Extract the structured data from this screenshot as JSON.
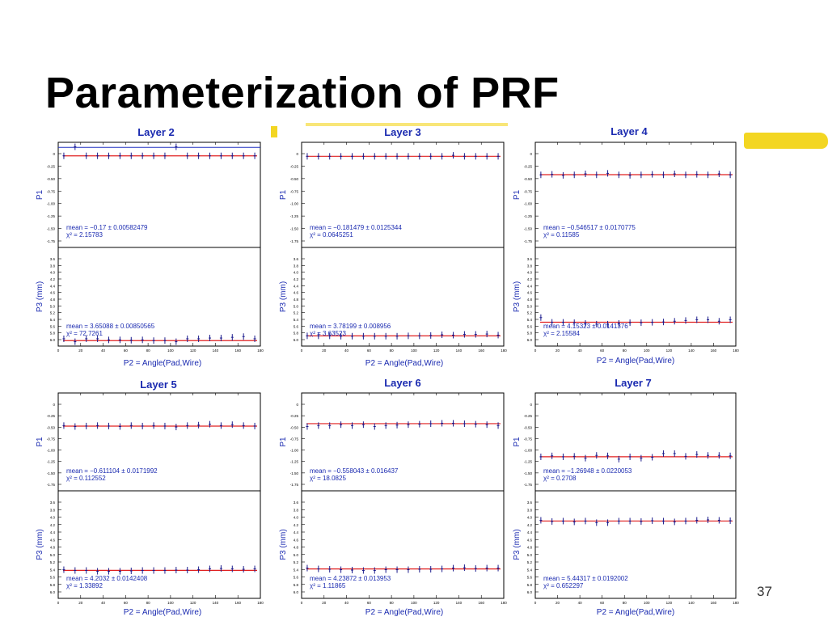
{
  "slide": {
    "title": "Parameterization of PRF",
    "page_number": "37"
  },
  "colors": {
    "points": "#1a1a8c",
    "fit": "#e02020",
    "axis_label": "#1a2ab0",
    "stats_text": "#1a2ab0",
    "highlight": "#f2d20a"
  },
  "chart_data": [
    {
      "type": "scatter",
      "title": "Layer 2",
      "xlabel": "P2 = Angle(Pad,Wire)",
      "xlim": [
        0,
        180
      ],
      "x": [
        5,
        15,
        25,
        35,
        45,
        55,
        65,
        75,
        85,
        95,
        105,
        115,
        125,
        135,
        145,
        155,
        165,
        175
      ],
      "top": {
        "ylabel": "P1",
        "ylim": [
          -2.0,
          0.1
        ],
        "yticks": [
          "0",
          "-0.25",
          "-0.50",
          "-0.75",
          "-1.00",
          "-1.25",
          "-1.50",
          "-1.75"
        ],
        "values": [
          -0.17,
          0.01,
          -0.17,
          -0.17,
          -0.17,
          -0.17,
          -0.17,
          -0.17,
          -0.17,
          -0.17,
          0.01,
          -0.17,
          -0.17,
          -0.17,
          -0.17,
          -0.17,
          -0.17,
          -0.17
        ],
        "fit": -0.17,
        "ref_line": 0,
        "stats": [
          "mean = −0.17 ± 0.00582479",
          "χ² = 2.15783"
        ]
      },
      "bottom": {
        "ylabel": "P3 (mm)",
        "ylim": [
          3.5,
          6.2
        ],
        "yticks": [
          "3.6",
          "3.8",
          "4.0",
          "4.2",
          "4.4",
          "4.6",
          "4.8",
          "5.0",
          "5.2",
          "5.4",
          "5.6",
          "5.8",
          "6.0"
        ],
        "values": [
          3.7,
          3.62,
          3.7,
          3.7,
          3.67,
          3.67,
          3.66,
          3.67,
          3.65,
          3.65,
          3.62,
          3.7,
          3.7,
          3.72,
          3.72,
          3.74,
          3.76,
          3.7
        ],
        "fit": 3.65,
        "stats": [
          "mean = 3.65088 ± 0.00850565",
          "χ² = 72.7261"
        ]
      }
    },
    {
      "type": "scatter",
      "title": "Layer 3",
      "xlabel": "P2 = Angle(Pad,Wire)",
      "xlim": [
        0,
        180
      ],
      "x": [
        5,
        15,
        25,
        35,
        45,
        55,
        65,
        75,
        85,
        95,
        105,
        115,
        125,
        135,
        145,
        155,
        165,
        175
      ],
      "top": {
        "ylabel": "P1",
        "ylim": [
          -2.0,
          0.1
        ],
        "yticks": [
          "0",
          "-0.25",
          "-0.50",
          "-0.75",
          "-1.00",
          "-1.25",
          "-1.50",
          "-1.75"
        ],
        "values": [
          -0.18,
          -0.18,
          -0.18,
          -0.18,
          -0.18,
          -0.18,
          -0.18,
          -0.18,
          -0.18,
          -0.18,
          -0.18,
          -0.18,
          -0.18,
          -0.16,
          -0.18,
          -0.18,
          -0.18,
          -0.18
        ],
        "fit": -0.18,
        "stats": [
          "mean = −0.181479 ± 0.0125344",
          "χ² = 0.0645251"
        ]
      },
      "bottom": {
        "ylabel": "P3 (mm)",
        "ylim": [
          3.5,
          6.2
        ],
        "yticks": [
          "3.6",
          "3.8",
          "4.0",
          "4.2",
          "4.4",
          "4.6",
          "4.8",
          "5.0",
          "5.2",
          "5.4",
          "5.6",
          "5.8",
          "6.0"
        ],
        "values": [
          3.78,
          3.78,
          3.78,
          3.77,
          3.77,
          3.77,
          3.77,
          3.77,
          3.77,
          3.78,
          3.78,
          3.79,
          3.81,
          3.8,
          3.82,
          3.82,
          3.83,
          3.8
        ],
        "fit": 3.78,
        "stats": [
          "mean = 3.78199 ± 0.008956",
          "χ² = 3.63523"
        ]
      }
    },
    {
      "type": "scatter",
      "title": "Layer 4",
      "xlabel": "P2 = Angle(Pad,Wire)",
      "xlim": [
        0,
        180
      ],
      "x": [
        5,
        15,
        25,
        35,
        45,
        55,
        65,
        75,
        85,
        95,
        105,
        115,
        125,
        135,
        145,
        155,
        165,
        175
      ],
      "top": {
        "ylabel": "P1",
        "ylim": [
          -2.0,
          0.1
        ],
        "yticks": [
          "0",
          "-0.25",
          "-0.50",
          "-0.75",
          "-1.00",
          "-1.25",
          "-1.50",
          "-1.75"
        ],
        "values": [
          -0.55,
          -0.54,
          -0.56,
          -0.55,
          -0.53,
          -0.55,
          -0.52,
          -0.55,
          -0.56,
          -0.55,
          -0.54,
          -0.55,
          -0.53,
          -0.55,
          -0.54,
          -0.55,
          -0.53,
          -0.55
        ],
        "fit": -0.546,
        "stats": [
          "mean = −0.546517 ± 0.0170775",
          "χ² = 0.11585"
        ]
      },
      "bottom": {
        "ylabel": "P3 (mm)",
        "ylim": [
          3.5,
          6.2
        ],
        "yticks": [
          "3.6",
          "3.8",
          "4.0",
          "4.2",
          "4.4",
          "4.6",
          "4.8",
          "5.0",
          "5.2",
          "5.4",
          "5.6",
          "5.8",
          "6.0"
        ],
        "values": [
          4.28,
          4.15,
          4.15,
          4.14,
          4.12,
          4.1,
          4.1,
          4.12,
          4.14,
          4.14,
          4.15,
          4.16,
          4.18,
          4.2,
          4.22,
          4.22,
          4.18,
          4.22
        ],
        "fit": 4.153,
        "stats": [
          "mean = 4.15323 ± 0.0141376",
          "χ² = 2.15584"
        ]
      }
    },
    {
      "type": "scatter",
      "title": "Layer 5",
      "xlabel": "P2 = Angle(Pad,Wire)",
      "xlim": [
        0,
        180
      ],
      "x": [
        5,
        15,
        25,
        35,
        45,
        55,
        65,
        75,
        85,
        95,
        105,
        115,
        125,
        135,
        145,
        155,
        165,
        175
      ],
      "top": {
        "ylabel": "P1",
        "ylim": [
          -2.0,
          0.1
        ],
        "yticks": [
          "0",
          "-0.25",
          "-0.50",
          "-0.75",
          "-1.00",
          "-1.25",
          "-1.50",
          "-1.75"
        ],
        "values": [
          -0.6,
          -0.62,
          -0.61,
          -0.6,
          -0.61,
          -0.62,
          -0.6,
          -0.61,
          -0.6,
          -0.61,
          -0.63,
          -0.6,
          -0.59,
          -0.57,
          -0.6,
          -0.58,
          -0.6,
          -0.61
        ],
        "fit": -0.611,
        "stats": [
          "mean = −0.611104 ± 0.0171992",
          "χ² = 0.112552"
        ]
      },
      "bottom": {
        "ylabel": "P3 (mm)",
        "ylim": [
          3.5,
          6.2
        ],
        "yticks": [
          "3.6",
          "3.8",
          "4.0",
          "4.2",
          "4.4",
          "4.6",
          "4.8",
          "5.0",
          "5.2",
          "5.4",
          "5.6",
          "5.8",
          "6.0"
        ],
        "values": [
          4.22,
          4.2,
          4.2,
          4.18,
          4.18,
          4.18,
          4.19,
          4.2,
          4.2,
          4.2,
          4.21,
          4.21,
          4.22,
          4.24,
          4.25,
          4.24,
          4.23,
          4.24
        ],
        "fit": 4.203,
        "stats": [
          "mean = 4.2032 ± 0.0142408",
          "χ² = 1.33892"
        ]
      }
    },
    {
      "type": "scatter",
      "title": "Layer 6",
      "xlabel": "P2 = Angle(Pad,Wire)",
      "xlim": [
        0,
        180
      ],
      "x": [
        5,
        15,
        25,
        35,
        45,
        55,
        65,
        75,
        85,
        95,
        105,
        115,
        125,
        135,
        145,
        155,
        165,
        175
      ],
      "top": {
        "ylabel": "P1",
        "ylim": [
          -2.0,
          0.1
        ],
        "yticks": [
          "0",
          "-0.25",
          "-0.50",
          "-0.75",
          "-1.00",
          "-1.25",
          "-1.50",
          "-1.75"
        ],
        "values": [
          -0.62,
          -0.6,
          -0.6,
          -0.58,
          -0.6,
          -0.58,
          -0.62,
          -0.6,
          -0.59,
          -0.58,
          -0.57,
          -0.56,
          -0.55,
          -0.55,
          -0.56,
          -0.57,
          -0.58,
          -0.6
        ],
        "fit": -0.558,
        "stats": [
          "mean = −0.558043 ± 0.016437",
          "χ² = 18.0825"
        ]
      },
      "bottom": {
        "ylabel": "P3 (mm)",
        "ylim": [
          3.5,
          6.2
        ],
        "yticks": [
          "3.6",
          "3.8",
          "4.0",
          "4.2",
          "4.4",
          "4.6",
          "4.8",
          "5.0",
          "5.2",
          "5.4",
          "5.6",
          "5.8",
          "6.0"
        ],
        "values": [
          4.26,
          4.24,
          4.23,
          4.22,
          4.21,
          4.2,
          4.2,
          4.22,
          4.22,
          4.22,
          4.23,
          4.23,
          4.24,
          4.26,
          4.27,
          4.25,
          4.26,
          4.26
        ],
        "fit": 4.239,
        "stats": [
          "mean = 4.23872 ± 0.013953",
          "χ² = 1.11865"
        ]
      }
    },
    {
      "type": "scatter",
      "title": "Layer 7",
      "xlabel": "P2 = Angle(Pad,Wire)",
      "xlim": [
        0,
        180
      ],
      "x": [
        5,
        15,
        25,
        35,
        45,
        55,
        65,
        75,
        85,
        95,
        105,
        115,
        125,
        135,
        145,
        155,
        165,
        175
      ],
      "top": {
        "ylabel": "P1",
        "ylim": [
          -2.0,
          0.1
        ],
        "yticks": [
          "0",
          "-0.25",
          "-0.50",
          "-0.75",
          "-1.00",
          "-1.25",
          "-1.50",
          "-1.75"
        ],
        "values": [
          -1.27,
          -1.25,
          -1.27,
          -1.26,
          -1.3,
          -1.24,
          -1.25,
          -1.32,
          -1.27,
          -1.3,
          -1.28,
          -1.2,
          -1.2,
          -1.26,
          -1.22,
          -1.24,
          -1.24,
          -1.25
        ],
        "fit": -1.269,
        "stats": [
          "mean = −1.26948 ± 0.0220053",
          "χ² = 0.2708"
        ]
      },
      "bottom": {
        "ylabel": "P3 (mm)",
        "ylim": [
          3.5,
          6.2
        ],
        "yticks": [
          "3.6",
          "3.8",
          "4.0",
          "4.2",
          "4.4",
          "4.6",
          "4.8",
          "5.0",
          "5.2",
          "5.4",
          "5.6",
          "5.8",
          "6.0"
        ],
        "values": [
          5.46,
          5.43,
          5.44,
          5.42,
          5.44,
          5.4,
          5.4,
          5.44,
          5.44,
          5.43,
          5.45,
          5.44,
          5.42,
          5.44,
          5.46,
          5.47,
          5.46,
          5.45
        ],
        "fit": 5.443,
        "stats": [
          "mean = 5.44317 ± 0.0192002",
          "χ² = 0.652297"
        ]
      }
    }
  ]
}
